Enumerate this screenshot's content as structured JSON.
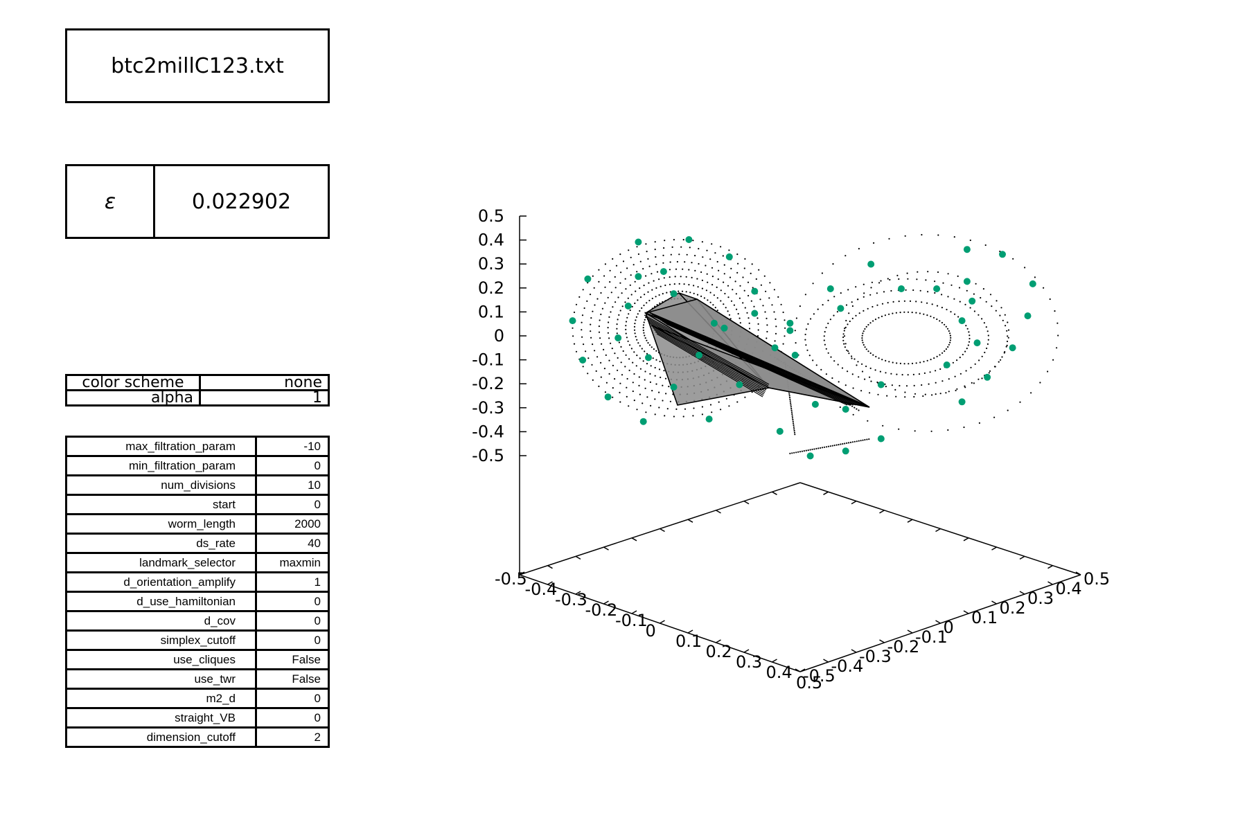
{
  "title": "btc2millC123.txt",
  "epsilon": {
    "symbol": "ε",
    "value": "0.022902"
  },
  "display": [
    {
      "label": "color scheme",
      "value": "none"
    },
    {
      "label": "alpha",
      "value": "1"
    }
  ],
  "params": [
    {
      "name": "max_filtration_param",
      "value": "-10"
    },
    {
      "name": "min_filtration_param",
      "value": "0"
    },
    {
      "name": "num_divisions",
      "value": "10"
    },
    {
      "name": "start",
      "value": "0"
    },
    {
      "name": "worm_length",
      "value": "2000"
    },
    {
      "name": "ds_rate",
      "value": "40"
    },
    {
      "name": "landmark_selector",
      "value": "maxmin"
    },
    {
      "name": "d_orientation_amplify",
      "value": "1"
    },
    {
      "name": "d_use_hamiltonian",
      "value": "0"
    },
    {
      "name": "d_cov",
      "value": "0"
    },
    {
      "name": "simplex_cutoff",
      "value": "0"
    },
    {
      "name": "use_cliques",
      "value": "False"
    },
    {
      "name": "use_twr",
      "value": "False"
    },
    {
      "name": "m2_d",
      "value": "0"
    },
    {
      "name": "straight_VB",
      "value": "0"
    },
    {
      "name": "dimension_cutoff",
      "value": "2"
    }
  ],
  "chart_data": {
    "type": "scatter",
    "projection": "3d",
    "z_ticks": [
      "0.5",
      "0.4",
      "0.3",
      "0.2",
      "0.1",
      "0",
      "-0.1",
      "-0.2",
      "-0.3",
      "-0.4",
      "-0.5"
    ],
    "x_ticks": [
      "-0.5",
      "-0.4",
      "-0.3",
      "-0.2",
      "-0.1",
      "0",
      "0.1",
      "0.2",
      "0.3",
      "0.4",
      "0.5"
    ],
    "y_ticks": [
      "-0.5",
      "-0.4",
      "-0.3",
      "-0.2",
      "-0.1",
      "0",
      "0.1",
      "0.2",
      "0.3",
      "0.4",
      "0.5"
    ],
    "zlim": [
      -0.5,
      0.5
    ],
    "point_color": "#000000",
    "landmark_color": "#009e73",
    "simplex_fill": "#8c8c8c",
    "landmarks_approx": [
      [
        -0.32,
        0.39
      ],
      [
        -0.22,
        0.4
      ],
      [
        -0.14,
        0.33
      ],
      [
        -0.09,
        0.19
      ],
      [
        -0.02,
        0.06
      ],
      [
        -0.05,
        -0.04
      ],
      [
        -0.12,
        -0.19
      ],
      [
        -0.18,
        -0.33
      ],
      [
        -0.31,
        -0.34
      ],
      [
        -0.38,
        -0.24
      ],
      [
        -0.43,
        -0.09
      ],
      [
        -0.45,
        0.07
      ],
      [
        -0.42,
        0.24
      ],
      [
        -0.27,
        0.27
      ],
      [
        -0.32,
        0.25
      ],
      [
        -0.34,
        0.13
      ],
      [
        -0.36,
        0.0
      ],
      [
        -0.3,
        -0.08
      ],
      [
        -0.25,
        -0.2
      ],
      [
        -0.2,
        -0.07
      ],
      [
        -0.17,
        0.06
      ],
      [
        -0.25,
        0.18
      ],
      [
        -0.15,
        0.04
      ],
      [
        -0.09,
        0.1
      ],
      [
        -0.02,
        0.03
      ],
      [
        0.06,
        0.2
      ],
      [
        0.14,
        0.3
      ],
      [
        0.2,
        0.2
      ],
      [
        0.27,
        0.2
      ],
      [
        0.33,
        0.23
      ],
      [
        0.34,
        0.15
      ],
      [
        0.32,
        0.07
      ],
      [
        0.35,
        -0.02
      ],
      [
        0.29,
        -0.11
      ],
      [
        0.16,
        -0.19
      ],
      [
        0.09,
        -0.29
      ],
      [
        0.03,
        -0.27
      ],
      [
        -0.01,
        -0.07
      ],
      [
        -0.04,
        -0.38
      ],
      [
        0.02,
        -0.48
      ],
      [
        0.09,
        -0.46
      ],
      [
        0.16,
        -0.41
      ],
      [
        0.32,
        -0.26
      ],
      [
        0.37,
        -0.16
      ],
      [
        0.42,
        -0.04
      ],
      [
        0.45,
        0.09
      ],
      [
        0.46,
        0.22
      ],
      [
        0.4,
        0.34
      ],
      [
        0.33,
        0.36
      ],
      [
        0.08,
        0.12
      ]
    ]
  }
}
